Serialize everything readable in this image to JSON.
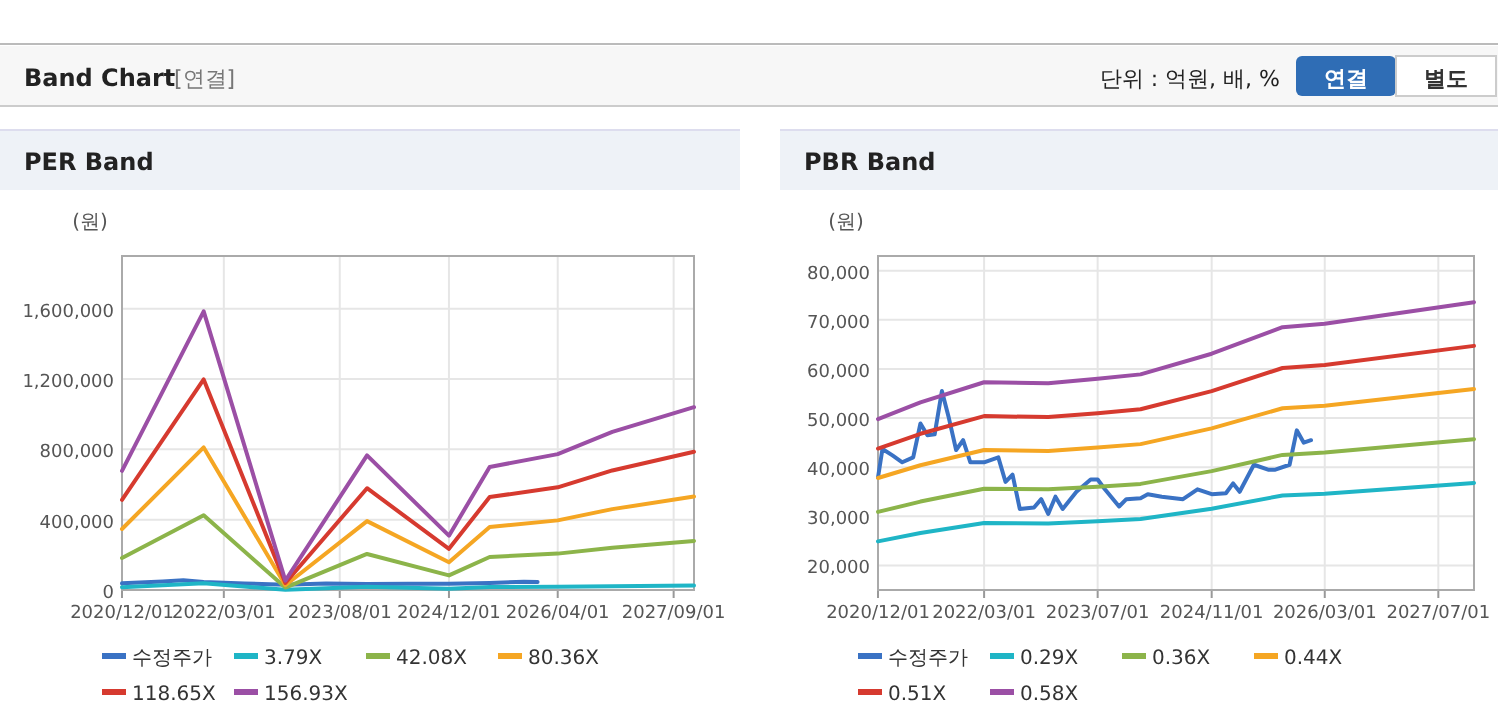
{
  "chart_data": [
    {
      "type": "other",
      "title": "Band Chart",
      "annotations": [
        "[연결]",
        "단위 : 억원, 배, %",
        "연결",
        "별도"
      ]
    },
    {
      "type": "line",
      "title": "PER Band",
      "ylabel": "(원)",
      "xlim": [
        "2020-12-01",
        "2027-12-01"
      ],
      "ylim": [
        0,
        1900000
      ],
      "xticks": [
        {
          "value": "2020-12-01",
          "label": "2020/12/01"
        },
        {
          "value": "2022-03-01",
          "label": "2022/03/01"
        },
        {
          "value": "2023-08-01",
          "label": "2023/08/01"
        },
        {
          "value": "2024-12-01",
          "label": "2024/12/01"
        },
        {
          "value": "2026-04-01",
          "label": "2026/04/01"
        },
        {
          "value": "2027-09-01",
          "label": "2027/09/01"
        }
      ],
      "yticks": [
        {
          "value": 0,
          "label": "0"
        },
        {
          "value": 400000,
          "label": "400,000"
        },
        {
          "value": 800000,
          "label": "800,000"
        },
        {
          "value": 1200000,
          "label": "1,200,000"
        },
        {
          "value": 1600000,
          "label": "1,600,000"
        }
      ],
      "grid": true,
      "legend": "bottom",
      "marker": "none",
      "series": [
        {
          "name": "수정주가",
          "color": "#3a72c4",
          "x": [
            "2020-12-01",
            "2021-06-01",
            "2021-09-01",
            "2021-12-01",
            "2022-06-01",
            "2022-12-01",
            "2023-06-01",
            "2023-12-01",
            "2024-06-01",
            "2024-12-01",
            "2025-06-01",
            "2025-11-01",
            "2026-01-01"
          ],
          "values": [
            37900,
            48900,
            55500,
            45500,
            37000,
            30500,
            37500,
            33700,
            35500,
            35000,
            40500,
            47500,
            45500
          ]
        },
        {
          "name": "3.79X",
          "color": "#1fb5c6",
          "x": [
            "2020-12-01",
            "2021-12-01",
            "2022-12-01",
            "2023-12-01",
            "2024-12-01",
            "2025-06-01",
            "2026-04-01",
            "2026-12-01",
            "2027-12-01"
          ],
          "values": [
            16000,
            38000,
            1000,
            19000,
            7000,
            17000,
            19000,
            22000,
            25000
          ]
        },
        {
          "name": "42.08X",
          "color": "#8cb44a",
          "x": [
            "2020-12-01",
            "2021-12-01",
            "2022-12-01",
            "2023-12-01",
            "2024-12-01",
            "2025-06-01",
            "2026-04-01",
            "2026-12-01",
            "2027-12-01"
          ],
          "values": [
            182000,
            425000,
            14000,
            205000,
            83000,
            188000,
            207000,
            241000,
            279000
          ]
        },
        {
          "name": "80.36X",
          "color": "#f5a623",
          "x": [
            "2020-12-01",
            "2021-12-01",
            "2022-12-01",
            "2023-12-01",
            "2024-12-01",
            "2025-06-01",
            "2026-04-01",
            "2026-12-01",
            "2027-12-01"
          ],
          "values": [
            347000,
            811000,
            27000,
            392000,
            158000,
            358000,
            396000,
            460000,
            532000
          ]
        },
        {
          "name": "118.65X",
          "color": "#d63a2f",
          "x": [
            "2020-12-01",
            "2021-12-01",
            "2022-12-01",
            "2023-12-01",
            "2024-12-01",
            "2025-06-01",
            "2026-04-01",
            "2026-12-01",
            "2027-12-01"
          ],
          "values": [
            513000,
            1198000,
            40000,
            579000,
            234000,
            529000,
            584000,
            680000,
            786000
          ]
        },
        {
          "name": "156.93X",
          "color": "#9b4fa5",
          "x": [
            "2020-12-01",
            "2021-12-01",
            "2022-12-01",
            "2023-12-01",
            "2024-12-01",
            "2025-06-01",
            "2026-04-01",
            "2026-12-01",
            "2027-12-01"
          ],
          "values": [
            678000,
            1585000,
            53000,
            766000,
            309000,
            700000,
            773000,
            899000,
            1040000
          ]
        }
      ]
    },
    {
      "type": "line",
      "title": "PBR Band",
      "ylabel": "(원)",
      "xlim": [
        "2020-12-01",
        "2027-12-01"
      ],
      "ylim": [
        15000,
        83000
      ],
      "xticks": [
        {
          "value": "2020-12-01",
          "label": "2020/12/01"
        },
        {
          "value": "2022-03-01",
          "label": "2022/03/01"
        },
        {
          "value": "2023-07-01",
          "label": "2023/07/01"
        },
        {
          "value": "2024-11-01",
          "label": "2024/11/01"
        },
        {
          "value": "2026-03-01",
          "label": "2026/03/01"
        },
        {
          "value": "2027-07-01",
          "label": "2027/07/01"
        }
      ],
      "yticks": [
        {
          "value": 20000,
          "label": "20,000"
        },
        {
          "value": 30000,
          "label": "30,000"
        },
        {
          "value": 40000,
          "label": "40,000"
        },
        {
          "value": 50000,
          "label": "50,000"
        },
        {
          "value": 60000,
          "label": "60,000"
        },
        {
          "value": 70000,
          "label": "70,000"
        },
        {
          "value": 80000,
          "label": "80,000"
        }
      ],
      "grid": true,
      "legend": "bottom",
      "marker": "none",
      "series": [
        {
          "name": "수정주가",
          "color": "#3a72c4",
          "x": [
            "2020-12-01",
            "2020-12-20",
            "2021-02-01",
            "2021-03-15",
            "2021-05-01",
            "2021-06-01",
            "2021-07-01",
            "2021-08-01",
            "2021-09-01",
            "2021-10-01",
            "2021-11-01",
            "2021-12-01",
            "2022-01-01",
            "2022-03-01",
            "2022-05-01",
            "2022-06-01",
            "2022-07-01",
            "2022-08-01",
            "2022-10-01",
            "2022-11-01",
            "2022-12-01",
            "2023-01-01",
            "2023-02-01",
            "2023-04-01",
            "2023-06-01",
            "2023-07-01",
            "2023-08-01",
            "2023-10-01",
            "2023-11-01",
            "2024-01-01",
            "2024-02-01",
            "2024-04-01",
            "2024-07-01",
            "2024-09-01",
            "2024-11-01",
            "2025-01-01",
            "2025-02-01",
            "2025-03-01",
            "2025-05-01",
            "2025-07-01",
            "2025-08-01",
            "2025-10-01",
            "2025-11-01",
            "2025-12-01",
            "2026-01-01"
          ],
          "values": [
            37900,
            43700,
            42400,
            41000,
            42000,
            48900,
            46500,
            46700,
            55500,
            50000,
            43500,
            45500,
            41000,
            41000,
            42000,
            37000,
            38500,
            31500,
            31800,
            33500,
            30500,
            34000,
            31500,
            35000,
            37500,
            37500,
            35500,
            32000,
            33500,
            33700,
            34500,
            34000,
            33500,
            35500,
            34500,
            34700,
            36700,
            35000,
            40500,
            39500,
            39500,
            40500,
            47500,
            45000,
            45500
          ]
        },
        {
          "name": "0.29X",
          "color": "#1fb5c6",
          "x": [
            "2020-12-01",
            "2021-06-01",
            "2022-03-01",
            "2022-12-01",
            "2023-07-01",
            "2024-01-01",
            "2024-11-01",
            "2025-09-01",
            "2026-03-01",
            "2027-12-01"
          ],
          "values": [
            24900,
            26600,
            28650,
            28550,
            29000,
            29450,
            31550,
            34250,
            34600,
            36800
          ]
        },
        {
          "name": "0.36X",
          "color": "#8cb44a",
          "x": [
            "2020-12-01",
            "2021-06-01",
            "2022-03-01",
            "2022-12-01",
            "2023-07-01",
            "2024-01-01",
            "2024-11-01",
            "2025-09-01",
            "2026-03-01",
            "2027-12-01"
          ],
          "values": [
            30900,
            33000,
            35600,
            35500,
            36000,
            36600,
            39200,
            42500,
            43000,
            45700
          ]
        },
        {
          "name": "0.44X",
          "color": "#f5a623",
          "x": [
            "2020-12-01",
            "2021-06-01",
            "2022-03-01",
            "2022-12-01",
            "2023-07-01",
            "2024-01-01",
            "2024-11-01",
            "2025-09-01",
            "2026-03-01",
            "2027-12-01"
          ],
          "values": [
            37800,
            40400,
            43500,
            43300,
            44000,
            44700,
            47900,
            52000,
            52500,
            55900
          ]
        },
        {
          "name": "0.51X",
          "color": "#d63a2f",
          "x": [
            "2020-12-01",
            "2021-06-01",
            "2022-03-01",
            "2022-12-01",
            "2023-07-01",
            "2024-01-01",
            "2024-11-01",
            "2025-09-01",
            "2026-03-01",
            "2027-12-01"
          ],
          "values": [
            43800,
            46800,
            50400,
            50200,
            51000,
            51800,
            55500,
            60200,
            60800,
            64700
          ]
        },
        {
          "name": "0.58X",
          "color": "#9b4fa5",
          "x": [
            "2020-12-01",
            "2021-06-01",
            "2022-03-01",
            "2022-12-01",
            "2023-07-01",
            "2024-01-01",
            "2024-11-01",
            "2025-09-01",
            "2026-03-01",
            "2027-12-01"
          ],
          "values": [
            49800,
            53200,
            57300,
            57100,
            58000,
            58900,
            63100,
            68500,
            69200,
            73600
          ]
        }
      ]
    }
  ]
}
